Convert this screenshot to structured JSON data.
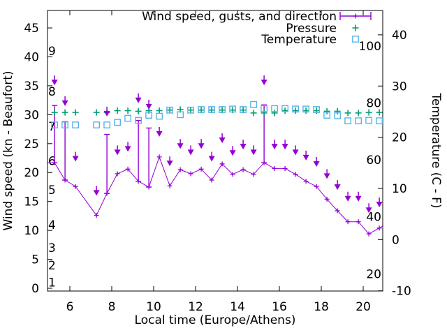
{
  "chart_data": {
    "type": "line",
    "title": "",
    "legend": {
      "wind": "Wind speed, gusts, and direction",
      "pressure": "Pressure",
      "temperature": "Temperature"
    },
    "xlabel": "Local time (Europe/Athens)",
    "ylabel_left": "Wind speed (kn - Beaufort)",
    "ylabel_right": "Temperature (C - F)",
    "colors": {
      "wind": "#9400d3",
      "pressure": "#009e73",
      "temperature": "#56b4e9",
      "axis": "#000000"
    },
    "x_ticks": [
      6,
      8,
      10,
      12,
      14,
      16,
      18,
      20
    ],
    "x_range": [
      4.933,
      20.933
    ],
    "y_left_ticks": [
      0,
      5,
      10,
      15,
      20,
      25,
      30,
      35,
      40,
      45
    ],
    "y_left_range": [
      -0.48,
      48.02
    ],
    "y_right_ticks": [
      -10,
      0,
      10,
      20,
      30,
      40
    ],
    "y_right_range": [
      -10.04,
      44.76
    ],
    "beaufort_labels": [
      {
        "label": "1",
        "kn": 1
      },
      {
        "label": "2",
        "kn": 4
      },
      {
        "label": "3",
        "kn": 7
      },
      {
        "label": "4",
        "kn": 11
      },
      {
        "label": "5",
        "kn": 17
      },
      {
        "label": "6",
        "kn": 22
      },
      {
        "label": "7",
        "kn": 28
      },
      {
        "label": "8",
        "kn": 34
      },
      {
        "label": "9",
        "kn": 41
      }
    ],
    "fahrenheit_labels": [
      {
        "label": "100",
        "f": 100
      },
      {
        "label": "80",
        "f": 80
      },
      {
        "label": "60",
        "f": 60
      },
      {
        "label": "40",
        "f": 40
      },
      {
        "label": "20",
        "f": 20
      }
    ],
    "series": {
      "wind": {
        "axis": "left",
        "note_point_format": "[time_h, wind_kn, gust_kn_or_null, direction_arrow_tip_kn_or_null]",
        "points": [
          [
            4.6,
            21.7,
            null,
            null
          ],
          [
            5.27,
            21.7,
            31.6,
            35.1
          ],
          [
            5.77,
            18.7,
            28.8,
            31.5
          ],
          [
            6.27,
            17.6,
            null,
            21.9
          ],
          [
            7.27,
            12.6,
            null,
            16.0
          ],
          [
            7.77,
            16.4,
            26.6,
            29.7
          ],
          [
            8.27,
            19.8,
            null,
            23.0
          ],
          [
            8.77,
            20.6,
            null,
            23.6
          ],
          [
            9.27,
            18.5,
            29.0,
            32.0
          ],
          [
            9.77,
            17.5,
            27.7,
            30.9
          ],
          [
            10.27,
            22.7,
            null,
            26.2
          ],
          [
            10.77,
            17.7,
            null,
            21.1
          ],
          [
            11.27,
            20.5,
            null,
            24.1
          ],
          [
            11.77,
            19.8,
            null,
            23.0
          ],
          [
            12.27,
            20.6,
            null,
            24.1
          ],
          [
            12.77,
            18.7,
            null,
            21.9
          ],
          [
            13.27,
            21.5,
            null,
            25.1
          ],
          [
            13.77,
            19.7,
            null,
            22.9
          ],
          [
            14.27,
            20.5,
            null,
            24.0
          ],
          [
            14.77,
            19.7,
            null,
            23.0
          ],
          [
            15.27,
            21.7,
            31.7,
            35.1
          ],
          [
            15.77,
            20.7,
            null,
            24.0
          ],
          [
            16.27,
            20.7,
            null,
            24.0
          ],
          [
            16.77,
            19.7,
            null,
            23.0
          ],
          [
            17.27,
            18.5,
            null,
            22.1
          ],
          [
            17.77,
            17.6,
            null,
            21.0
          ],
          [
            18.27,
            15.4,
            null,
            18.9
          ],
          [
            18.77,
            13.4,
            null,
            17.0
          ],
          [
            19.27,
            11.5,
            null,
            15.0
          ],
          [
            19.77,
            11.5,
            null,
            15.0
          ],
          [
            20.27,
            9.4,
            null,
            13.0
          ],
          [
            20.77,
            10.4,
            null,
            14.0
          ],
          [
            21.1,
            11.1,
            null,
            null
          ]
        ]
      },
      "pressure": {
        "axis": "left",
        "points": [
          [
            5.27,
            30.4
          ],
          [
            5.77,
            30.4
          ],
          [
            6.27,
            30.4
          ],
          [
            7.27,
            30.4
          ],
          [
            7.77,
            30.4
          ],
          [
            8.27,
            30.7
          ],
          [
            8.77,
            30.7
          ],
          [
            9.27,
            30.6
          ],
          [
            9.77,
            30.7
          ],
          [
            10.27,
            30.7
          ],
          [
            10.77,
            30.8
          ],
          [
            11.27,
            30.9
          ],
          [
            11.77,
            30.8
          ],
          [
            12.27,
            30.8
          ],
          [
            12.77,
            30.8
          ],
          [
            13.27,
            30.8
          ],
          [
            13.77,
            30.8
          ],
          [
            14.27,
            30.8
          ],
          [
            14.77,
            30.3
          ],
          [
            15.27,
            30.3
          ],
          [
            15.77,
            30.3
          ],
          [
            16.27,
            30.7
          ],
          [
            16.77,
            30.7
          ],
          [
            17.27,
            30.7
          ],
          [
            17.77,
            30.7
          ],
          [
            18.27,
            30.6
          ],
          [
            18.77,
            30.6
          ],
          [
            19.27,
            30.3
          ],
          [
            19.77,
            30.3
          ],
          [
            20.27,
            30.4
          ],
          [
            20.77,
            30.4
          ]
        ]
      },
      "temperature": {
        "axis": "right",
        "points": [
          [
            5.27,
            22.4
          ],
          [
            5.77,
            22.4
          ],
          [
            6.27,
            22.4
          ],
          [
            7.27,
            22.4
          ],
          [
            7.77,
            22.4
          ],
          [
            8.27,
            22.9
          ],
          [
            8.77,
            23.7
          ],
          [
            9.27,
            23.3
          ],
          [
            9.77,
            24.3
          ],
          [
            10.27,
            24.1
          ],
          [
            10.77,
            25.3
          ],
          [
            11.27,
            24.4
          ],
          [
            11.77,
            25.3
          ],
          [
            12.27,
            25.4
          ],
          [
            12.77,
            25.4
          ],
          [
            13.27,
            25.4
          ],
          [
            13.77,
            25.5
          ],
          [
            14.27,
            25.4
          ],
          [
            14.77,
            26.4
          ],
          [
            15.27,
            25.6
          ],
          [
            15.77,
            25.6
          ],
          [
            16.27,
            25.6
          ],
          [
            16.77,
            25.5
          ],
          [
            17.27,
            25.5
          ],
          [
            17.77,
            25.4
          ],
          [
            18.27,
            24.3
          ],
          [
            18.77,
            24.2
          ],
          [
            19.27,
            23.2
          ],
          [
            19.77,
            23.2
          ],
          [
            20.27,
            23.3
          ],
          [
            20.77,
            23.2
          ]
        ]
      }
    }
  }
}
